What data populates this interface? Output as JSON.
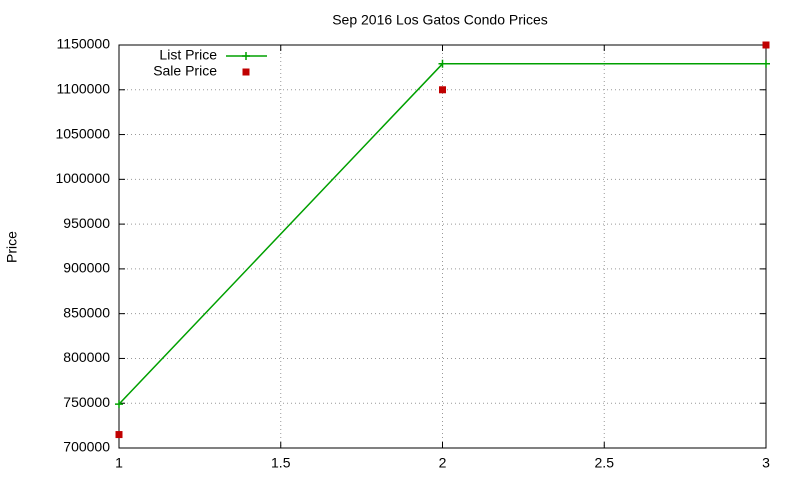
{
  "chart_data": {
    "type": "line",
    "title": "Sep 2016 Los Gatos Condo Prices",
    "y_label": "Price",
    "x": [
      1,
      2,
      3
    ],
    "series": [
      {
        "name": "List Price",
        "color": "#00a000",
        "values": [
          749000,
          1129000,
          1129000
        ],
        "marker": "plus",
        "line": true
      },
      {
        "name": "Sale Price",
        "color": "#c00000",
        "values": [
          715000,
          1100000,
          1150000
        ],
        "marker": "square",
        "line": false
      }
    ],
    "xlim": [
      1,
      3
    ],
    "xticks": [
      1,
      1.5,
      2,
      2.5,
      3
    ],
    "ylim": [
      700000,
      1150000
    ],
    "yticks": [
      700000,
      750000,
      800000,
      850000,
      900000,
      950000,
      1000000,
      1050000,
      1100000,
      1150000
    ],
    "grid": true,
    "legend": "top-left"
  }
}
